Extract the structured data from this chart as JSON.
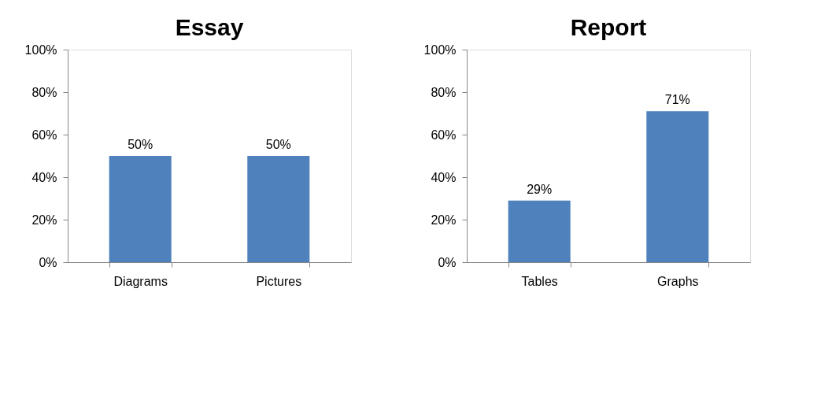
{
  "chart_data": [
    {
      "type": "bar",
      "title": "Essay",
      "categories": [
        "Diagrams",
        "Pictures"
      ],
      "values": [
        50,
        50
      ],
      "value_labels": [
        "50%",
        "50%"
      ],
      "color": "#4f81bd",
      "ylim": [
        0,
        100
      ],
      "yticks": [
        {
          "value": 0,
          "label": "0%"
        },
        {
          "value": 20,
          "label": "20%"
        },
        {
          "value": 40,
          "label": "40%"
        },
        {
          "value": 60,
          "label": "60%"
        },
        {
          "value": 80,
          "label": "80%"
        },
        {
          "value": 100,
          "label": "100%"
        }
      ],
      "grid": false
    },
    {
      "type": "bar",
      "title": "Report",
      "categories": [
        "Tables",
        "Graphs"
      ],
      "values": [
        29,
        71
      ],
      "value_labels": [
        "29%",
        "71%"
      ],
      "color": "#4f81bd",
      "ylim": [
        0,
        100
      ],
      "yticks": [
        {
          "value": 0,
          "label": "0%"
        },
        {
          "value": 20,
          "label": "20%"
        },
        {
          "value": 40,
          "label": "40%"
        },
        {
          "value": 60,
          "label": "60%"
        },
        {
          "value": 80,
          "label": "80%"
        },
        {
          "value": 100,
          "label": "100%"
        }
      ],
      "grid": false
    }
  ]
}
